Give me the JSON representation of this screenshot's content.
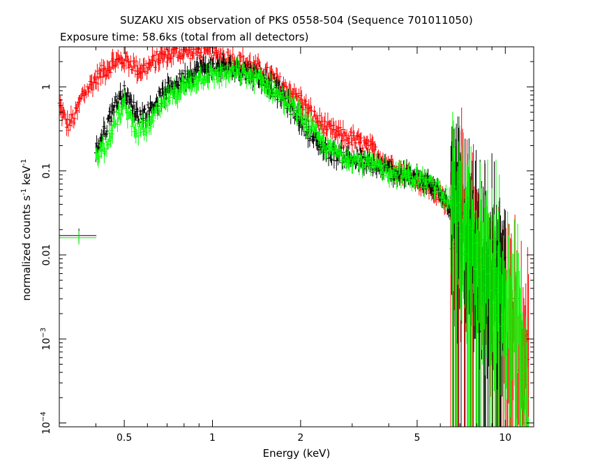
{
  "chart_data": {
    "type": "scatter",
    "title": "SUZAKU XIS observation of PKS 0558-504 (Sequence 701011050)",
    "subtitle": "Exposure time: 58.6ks (total from all detectors)",
    "xlabel": "Energy (keV)",
    "ylabel": "normalized counts s",
    "ylabel_unit": "keV",
    "ylabel_exp": "-1",
    "xscale": "log",
    "yscale": "log",
    "xlim": [
      0.3,
      12.5
    ],
    "ylim": [
      9e-05,
      3
    ],
    "x_ticks": [
      {
        "value": 0.5,
        "label": "0.5"
      },
      {
        "value": 1,
        "label": "1"
      },
      {
        "value": 2,
        "label": "2"
      },
      {
        "value": 5,
        "label": "5"
      },
      {
        "value": 10,
        "label": "10"
      }
    ],
    "y_ticks": [
      {
        "value": 1,
        "label": "1"
      },
      {
        "value": 0.1,
        "label": "0.1"
      },
      {
        "value": 0.01,
        "label": "0.01"
      },
      {
        "value": 0.001,
        "label": "10",
        "exp": "−3"
      },
      {
        "value": 0.0001,
        "label": "10",
        "exp": "−4"
      }
    ],
    "series": [
      {
        "color": "#ff0000",
        "points": [
          [
            0.3,
            0.6
          ],
          [
            0.32,
            0.35
          ],
          [
            0.34,
            0.45
          ],
          [
            0.36,
            0.8
          ],
          [
            0.38,
            1.0
          ],
          [
            0.4,
            1.25
          ],
          [
            0.43,
            1.6
          ],
          [
            0.46,
            1.95
          ],
          [
            0.5,
            2.1
          ],
          [
            0.53,
            1.9
          ],
          [
            0.56,
            1.6
          ],
          [
            0.6,
            1.7
          ],
          [
            0.65,
            2.2
          ],
          [
            0.7,
            2.4
          ],
          [
            0.75,
            2.55
          ],
          [
            0.8,
            2.65
          ],
          [
            0.9,
            2.6
          ],
          [
            1.0,
            2.45
          ],
          [
            1.1,
            2.3
          ],
          [
            1.3,
            1.9
          ],
          [
            1.5,
            1.5
          ],
          [
            1.7,
            1.1
          ],
          [
            2.0,
            0.7
          ],
          [
            2.2,
            0.45
          ],
          [
            2.5,
            0.3
          ],
          [
            3.0,
            0.24
          ],
          [
            3.5,
            0.18
          ],
          [
            4.0,
            0.12
          ],
          [
            5.0,
            0.08
          ],
          [
            6.0,
            0.05
          ],
          [
            7.0,
            0.02
          ],
          [
            8.0,
            0.008
          ],
          [
            9.0,
            0.004
          ],
          [
            10.0,
            0.002
          ],
          [
            11.0,
            0.001
          ],
          [
            12.0,
            0.0005
          ]
        ]
      },
      {
        "color": "#000000",
        "points": [
          [
            0.35,
            0.017
          ],
          [
            0.4,
            0.18
          ],
          [
            0.43,
            0.3
          ],
          [
            0.46,
            0.6
          ],
          [
            0.5,
            0.85
          ],
          [
            0.53,
            0.6
          ],
          [
            0.56,
            0.45
          ],
          [
            0.6,
            0.5
          ],
          [
            0.65,
            0.7
          ],
          [
            0.7,
            0.9
          ],
          [
            0.8,
            1.3
          ],
          [
            0.9,
            1.6
          ],
          [
            1.0,
            1.7
          ],
          [
            1.2,
            1.65
          ],
          [
            1.4,
            1.4
          ],
          [
            1.6,
            1.0
          ],
          [
            1.8,
            0.65
          ],
          [
            2.0,
            0.4
          ],
          [
            2.2,
            0.25
          ],
          [
            2.5,
            0.17
          ],
          [
            3.0,
            0.14
          ],
          [
            4.0,
            0.1
          ],
          [
            5.0,
            0.08
          ],
          [
            6.0,
            0.06
          ],
          [
            7.0,
            0.025
          ],
          [
            7.5,
            0.012
          ],
          [
            8.0,
            0.008
          ],
          [
            9.0,
            0.006
          ],
          [
            10.0,
            0.004
          ]
        ]
      },
      {
        "color": "#00ff00",
        "points": [
          [
            0.35,
            0.016
          ],
          [
            0.4,
            0.16
          ],
          [
            0.43,
            0.2
          ],
          [
            0.46,
            0.35
          ],
          [
            0.5,
            0.6
          ],
          [
            0.53,
            0.4
          ],
          [
            0.56,
            0.3
          ],
          [
            0.6,
            0.33
          ],
          [
            0.65,
            0.5
          ],
          [
            0.7,
            0.7
          ],
          [
            0.8,
            1.0
          ],
          [
            0.9,
            1.3
          ],
          [
            1.0,
            1.4
          ],
          [
            1.2,
            1.5
          ],
          [
            1.4,
            1.3
          ],
          [
            1.6,
            0.95
          ],
          [
            1.8,
            0.65
          ],
          [
            2.0,
            0.45
          ],
          [
            2.2,
            0.3
          ],
          [
            2.5,
            0.18
          ],
          [
            3.0,
            0.14
          ],
          [
            4.0,
            0.1
          ],
          [
            5.0,
            0.08
          ],
          [
            6.0,
            0.06
          ],
          [
            7.0,
            0.03
          ],
          [
            8.0,
            0.012
          ],
          [
            9.0,
            0.006
          ],
          [
            10.0,
            0.003
          ],
          [
            11.0,
            0.0015
          ],
          [
            12.0,
            0.0001
          ]
        ]
      }
    ]
  }
}
